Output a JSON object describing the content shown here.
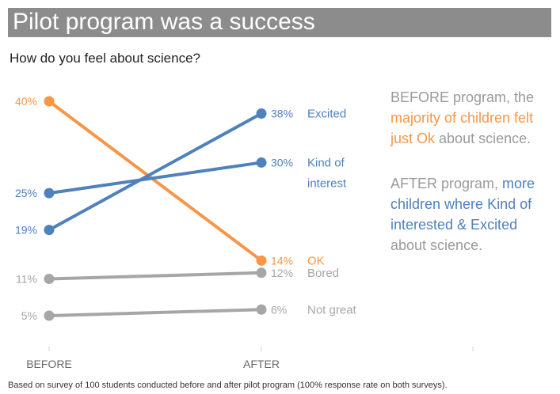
{
  "title": "Pilot program was a success",
  "subtitle": "How do you feel about science?",
  "colors": {
    "title_bg": "#8c8c8c",
    "orange": "#f79646",
    "blue": "#4f81bd",
    "gray": "#a6a6a6",
    "axis": "#d0d0d0"
  },
  "narrative": {
    "p1_a": "BEFORE program, the",
    "p1_b": "majority of children felt just Ok",
    "p1_c": "about science.",
    "p2_a": "AFTER program,",
    "p2_b": "more children where Kind of interested & Excited",
    "p2_c": "about science."
  },
  "footnote": "Based on survey of 100 students conducted before and after pilot program (100% response rate on both surveys).",
  "chart_data": {
    "type": "line",
    "categories": [
      "BEFORE",
      "AFTER"
    ],
    "series": [
      {
        "name": "OK",
        "values": [
          40,
          14
        ],
        "color": "#f79646",
        "label_color": "#f79646",
        "value_labels": [
          "40%",
          "14%"
        ],
        "name_lines": [
          "OK"
        ]
      },
      {
        "name": "Excited",
        "values": [
          19,
          38
        ],
        "color": "#4f81bd",
        "label_color": "#4f81bd",
        "value_labels": [
          "19%",
          "38%"
        ],
        "name_lines": [
          "Excited"
        ]
      },
      {
        "name": "Kind of interest",
        "values": [
          25,
          30
        ],
        "color": "#4f81bd",
        "label_color": "#4f81bd",
        "value_labels": [
          "25%",
          "30%"
        ],
        "name_lines": [
          "Kind of",
          "interest"
        ]
      },
      {
        "name": "Bored",
        "values": [
          11,
          12
        ],
        "color": "#a6a6a6",
        "label_color": "#a6a6a6",
        "value_labels": [
          "11%",
          "12%"
        ],
        "name_lines": [
          "Bored"
        ]
      },
      {
        "name": "Not great",
        "values": [
          5,
          6
        ],
        "color": "#a6a6a6",
        "label_color": "#a6a6a6",
        "value_labels": [
          "5%",
          "6%"
        ],
        "name_lines": [
          "Not great"
        ]
      }
    ],
    "ylim": [
      0,
      42
    ],
    "grid": false,
    "legend": "none"
  }
}
